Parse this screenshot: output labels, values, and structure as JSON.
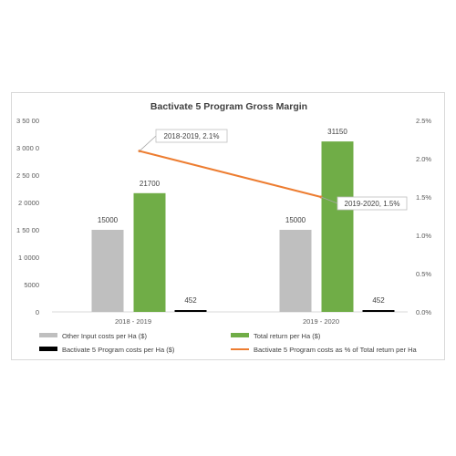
{
  "chart_data": {
    "type": "bar",
    "title": "Bactivate 5 Program Gross Margin",
    "categories": [
      "2018 - 2019",
      "2019 - 2020"
    ],
    "series": [
      {
        "name": "Other Input costs per Ha ($)",
        "kind": "bar",
        "axis": "left",
        "color": "#bfbfbf",
        "values": [
          15000,
          15000
        ],
        "labels": [
          "15000",
          "15000"
        ]
      },
      {
        "name": "Total return per Ha ($)",
        "kind": "bar",
        "axis": "left",
        "color": "#70ad47",
        "values": [
          21700,
          31150
        ],
        "labels": [
          "21700",
          "31150"
        ]
      },
      {
        "name": "Bactivate 5 Program costs per Ha ($)",
        "kind": "bar",
        "axis": "left",
        "color": "#000000",
        "values": [
          452,
          452
        ],
        "labels": [
          "452",
          "452"
        ]
      },
      {
        "name": "Bactivate 5 Program costs as % of Total return per Ha",
        "kind": "line",
        "axis": "right",
        "color": "#ed7d31",
        "values": [
          2.1,
          1.5
        ],
        "labels": [
          "2018-2019, 2.1%",
          "2019-2020, 1.5%"
        ]
      }
    ],
    "y_left": {
      "ticks": [
        0,
        5000,
        10000,
        15000,
        20000,
        25000,
        30000,
        35000
      ],
      "tick_labels": [
        "0",
        "5000",
        "1 0000",
        "1 50 00",
        "2 0000",
        "2 50 00",
        "3 000 0",
        "3 50 00"
      ],
      "ylim": [
        0,
        35000
      ]
    },
    "y_right": {
      "ticks": [
        0.0,
        0.5,
        1.0,
        1.5,
        2.0,
        2.5
      ],
      "tick_labels": [
        "0.0%",
        "0.5%",
        "1.0%",
        "1.5%",
        "2.0%",
        "2.5%"
      ],
      "ylim": [
        0,
        2.5
      ]
    },
    "legend_position": "bottom",
    "grid": false
  }
}
